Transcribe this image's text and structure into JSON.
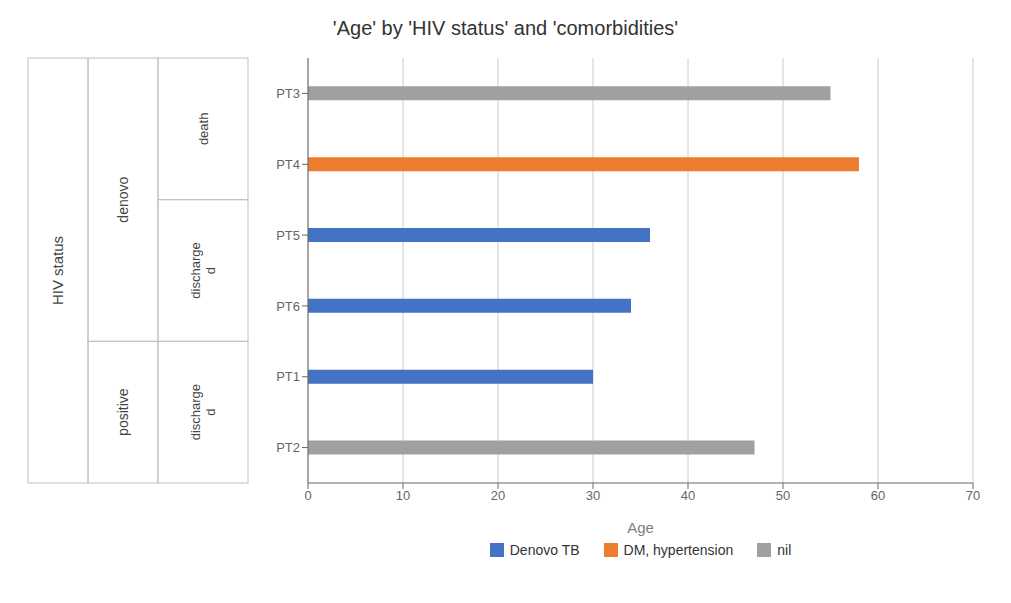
{
  "chart_data": {
    "type": "bar",
    "orientation": "horizontal",
    "title": "'Age' by 'HIV status' and 'comorbidities'",
    "xlabel": "Age",
    "categories": [
      "PT3",
      "PT4",
      "PT5",
      "PT6",
      "PT1",
      "PT2"
    ],
    "values": [
      55,
      58,
      36,
      34,
      30,
      47
    ],
    "colors": [
      "#a0a0a0",
      "#ed7d31",
      "#4472c4",
      "#4472c4",
      "#4472c4",
      "#a0a0a0"
    ],
    "xlim": [
      0,
      70
    ],
    "xticks": [
      0,
      10,
      20,
      30,
      40,
      50,
      60,
      70
    ],
    "grid": true,
    "legend": "bottom",
    "legend_entries": [
      {
        "name": "Denovo TB",
        "color": "#4472c4"
      },
      {
        "name": "DM, hypertension",
        "color": "#ed7d31"
      },
      {
        "name": "nil",
        "color": "#a0a0a0"
      }
    ],
    "annotations": {
      "title": "HIV status",
      "groups": [
        {
          "label": "denovo",
          "subgroups": [
            {
              "label": "death",
              "categories": [
                "PT3",
                "PT4"
              ]
            },
            {
              "label": "discharge\nd",
              "categories": [
                "PT5",
                "PT6"
              ]
            }
          ]
        },
        {
          "label": "positive",
          "subgroups": [
            {
              "label": "discharge\nd",
              "categories": [
                "PT1",
                "PT2"
              ]
            }
          ]
        }
      ]
    }
  }
}
